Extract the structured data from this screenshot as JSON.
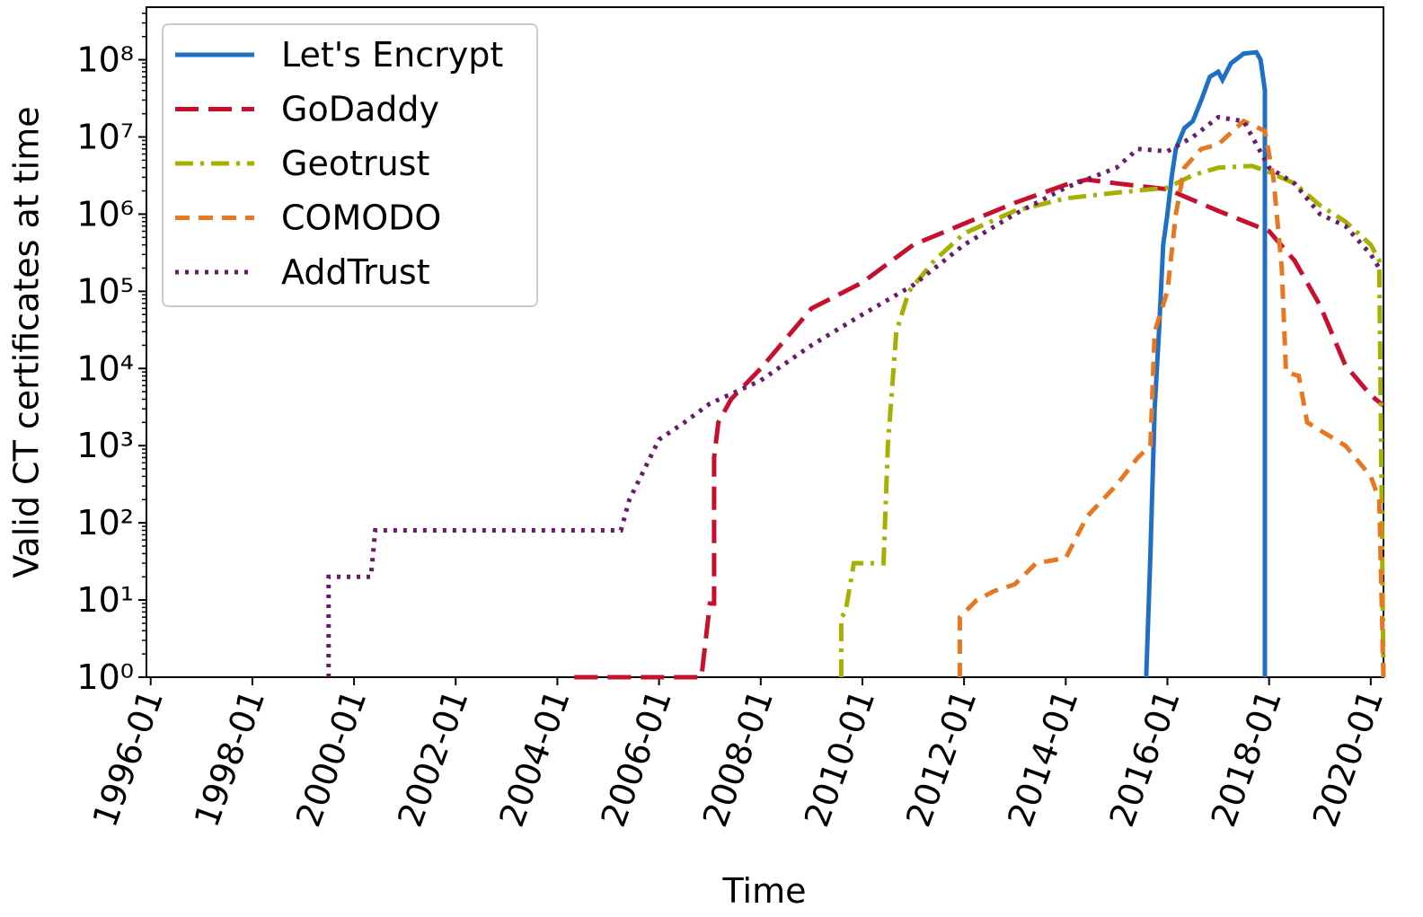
{
  "chart_data": {
    "type": "line",
    "xlabel": "Time",
    "ylabel": "Valid CT certificates at time",
    "yscale": "log",
    "xlim": [
      "1995-12",
      "2020-04"
    ],
    "xticks": [
      "1996-01",
      "1998-01",
      "2000-01",
      "2002-01",
      "2004-01",
      "2006-01",
      "2008-01",
      "2010-01",
      "2012-01",
      "2014-01",
      "2016-01",
      "2018-01",
      "2020-01"
    ],
    "ylim": [
      1,
      480000000
    ],
    "yticks": [
      {
        "value": 1,
        "label": "10⁰"
      },
      {
        "value": 10,
        "label": "10¹"
      },
      {
        "value": 100,
        "label": "10²"
      },
      {
        "value": 1000,
        "label": "10³"
      },
      {
        "value": 10000,
        "label": "10⁴"
      },
      {
        "value": 100000,
        "label": "10⁵"
      },
      {
        "value": 1000000,
        "label": "10⁶"
      },
      {
        "value": 10000000,
        "label": "10⁷"
      },
      {
        "value": 100000000,
        "label": "10⁸"
      }
    ],
    "grid": false,
    "legend": "upper left",
    "series": [
      {
        "name": "Let's Encrypt",
        "color": "#1f6fc5",
        "linestyle": "solid",
        "x": [
          "2015-08",
          "2015-09",
          "2015-10",
          "2015-11",
          "2015-12",
          "2016-01",
          "2016-02",
          "2016-03",
          "2016-05",
          "2016-07",
          "2016-09",
          "2016-11",
          "2017-01",
          "2017-02",
          "2017-04",
          "2017-07",
          "2017-10",
          "2017-11",
          "2017-12",
          "2017-12"
        ],
        "values": [
          1,
          40,
          3000,
          30000,
          400000,
          1000000,
          3000000,
          7000000,
          13000000,
          16000000,
          30000000,
          60000000,
          70000000,
          55000000,
          90000000,
          120000000,
          125000000,
          100000000,
          40000000,
          1
        ]
      },
      {
        "name": "GoDaddy",
        "color": "#c8102e",
        "linestyle": "dashed",
        "x": [
          "2004-05",
          "2006-11",
          "2007-01",
          "2007-02",
          "2007-02",
          "2007-03",
          "2007-06",
          "2008-01",
          "2009-01",
          "2010-01",
          "2011-01",
          "2012-01",
          "2013-01",
          "2014-01",
          "2014-06",
          "2015-01",
          "2016-01",
          "2017-01",
          "2018-01",
          "2018-07",
          "2019-01",
          "2019-07",
          "2020-01",
          "2020-04"
        ],
        "values": [
          1,
          1,
          9,
          9,
          700,
          2000,
          4000,
          10000,
          60000,
          130000,
          400000,
          750000,
          1400000,
          2400000,
          2800000,
          2500000,
          2100000,
          1100000,
          600000,
          250000,
          66000,
          11000,
          4500,
          3300
        ]
      },
      {
        "name": "Geotrust",
        "color": "#a5b000",
        "linestyle": "dashdot",
        "x": [
          "2009-08",
          "2009-08",
          "2009-09",
          "2009-11",
          "2010-06",
          "2010-07",
          "2010-09",
          "2010-12",
          "2011-06",
          "2012-01",
          "2013-01",
          "2014-01",
          "2015-01",
          "2016-01",
          "2016-07",
          "2017-01",
          "2017-09",
          "2018-01",
          "2018-07",
          "2019-01",
          "2019-07",
          "2020-01",
          "2020-03",
          "2020-04"
        ],
        "values": [
          1,
          6,
          7,
          30,
          30,
          1000,
          30000,
          100000,
          250000,
          560000,
          1100000,
          1600000,
          1900000,
          2200000,
          3200000,
          4000000,
          4200000,
          3500000,
          2500000,
          1300000,
          800000,
          400000,
          250000,
          1
        ]
      },
      {
        "name": "COMODO",
        "color": "#e87722",
        "linestyle": "dashed-short",
        "x": [
          "2011-12",
          "2011-12",
          "2012-04",
          "2012-08",
          "2013-01",
          "2013-06",
          "2014-01",
          "2014-06",
          "2015-01",
          "2015-06",
          "2015-09",
          "2015-10",
          "2016-01",
          "2016-03",
          "2016-05",
          "2016-09",
          "2017-01",
          "2017-07",
          "2017-12",
          "2018-02",
          "2018-04",
          "2018-05",
          "2018-08",
          "2018-10",
          "2019-07",
          "2020-01",
          "2020-03",
          "2020-04"
        ],
        "values": [
          1,
          6,
          10,
          13,
          16,
          30,
          35,
          120,
          310,
          700,
          1000,
          30000,
          100000,
          1000000,
          4000000,
          7000000,
          8000000,
          16000000,
          12000000,
          3000000,
          200000,
          9000,
          8000,
          2000,
          1000,
          400,
          200,
          1
        ]
      },
      {
        "name": "AddTrust",
        "color": "#6a1b6a",
        "linestyle": "dotted",
        "x": [
          "1999-07",
          "1999-07",
          "2000-05",
          "2000-06",
          "2005-04",
          "2005-06",
          "2006-01",
          "2006-07",
          "2007-01",
          "2008-01",
          "2009-01",
          "2010-01",
          "2011-01",
          "2012-01",
          "2013-01",
          "2014-01",
          "2015-01",
          "2015-06",
          "2016-01",
          "2016-07",
          "2017-01",
          "2017-07",
          "2018-01",
          "2018-07",
          "2019-01",
          "2019-07",
          "2020-01",
          "2020-03"
        ],
        "values": [
          1,
          20,
          20,
          80,
          80,
          200,
          1200,
          2000,
          3500,
          7000,
          20000,
          50000,
          120000,
          400000,
          1000000,
          2200000,
          4000000,
          7000000,
          6500000,
          10000000,
          18000000,
          16000000,
          4000000,
          2500000,
          1000000,
          700000,
          300000,
          200000
        ]
      }
    ]
  }
}
